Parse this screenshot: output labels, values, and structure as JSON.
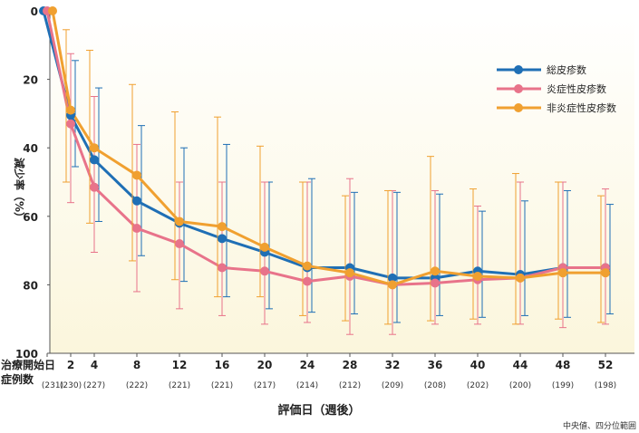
{
  "chart_data": {
    "type": "line",
    "xlabel": "評価日（週後）",
    "ylabel": "減少率（%）",
    "ylim": [
      100,
      0
    ],
    "y_ticks": [
      "0",
      "20",
      "40",
      "60",
      "80",
      "100"
    ],
    "x_ticks": [
      {
        "x": 0,
        "label": "治療開始日"
      },
      {
        "x": 2,
        "label": "2"
      },
      {
        "x": 4,
        "label": "4"
      },
      {
        "x": 8,
        "label": "8"
      },
      {
        "x": 12,
        "label": "12"
      },
      {
        "x": 16,
        "label": "16"
      },
      {
        "x": 20,
        "label": "20"
      },
      {
        "x": 24,
        "label": "24"
      },
      {
        "x": 28,
        "label": "28"
      },
      {
        "x": 32,
        "label": "32"
      },
      {
        "x": 36,
        "label": "36"
      },
      {
        "x": 40,
        "label": "40"
      },
      {
        "x": 44,
        "label": "44"
      },
      {
        "x": 48,
        "label": "48"
      },
      {
        "x": 52,
        "label": "52"
      }
    ],
    "case_count_label": "症例数",
    "case_counts": [
      "(231)",
      "(230)",
      "(227)",
      "(222)",
      "(221)",
      "(221)",
      "(217)",
      "(214)",
      "(212)",
      "(209)",
      "(208)",
      "(202)",
      "(200)",
      "(199)",
      "(198)"
    ],
    "note": "中央値、四分位範囲",
    "series": [
      {
        "name": "総皮疹数",
        "color": "#1f6fb5",
        "x": [
          0,
          2,
          4,
          8,
          12,
          16,
          20,
          24,
          28,
          32,
          36,
          40,
          44,
          48,
          52
        ],
        "y": [
          0,
          30.5,
          43.5,
          55.5,
          62,
          66.5,
          70.5,
          75,
          75,
          78,
          78,
          76,
          77,
          75,
          75
        ],
        "q1": [
          0,
          14.5,
          22.5,
          33.5,
          40,
          39,
          50,
          49,
          53,
          53,
          53.5,
          58.5,
          55.5,
          52.5,
          56.5
        ],
        "q3": [
          0,
          45.5,
          61.5,
          71.5,
          79,
          83.5,
          87,
          88,
          88.5,
          91,
          89,
          89.5,
          89,
          89.5,
          88.5
        ]
      },
      {
        "name": "炎症性皮疹数",
        "color": "#e8738a",
        "x": [
          0,
          2,
          4,
          8,
          12,
          16,
          20,
          24,
          28,
          32,
          36,
          40,
          44,
          48,
          52
        ],
        "y": [
          0,
          33,
          51.5,
          63.5,
          68,
          75,
          76,
          79,
          77.5,
          80,
          79.5,
          78.5,
          78,
          75,
          75
        ],
        "q1": [
          0,
          12.5,
          25,
          39,
          50,
          50,
          50,
          50,
          49,
          52.5,
          52.5,
          57,
          50,
          50,
          52
        ],
        "q3": [
          0,
          56,
          70.5,
          82,
          87,
          89,
          91.5,
          91,
          94.5,
          94.5,
          91.5,
          91.5,
          91.5,
          92.5,
          91.5
        ]
      },
      {
        "name": "非炎症性皮疹数",
        "color": "#f0a030",
        "x": [
          0,
          2,
          4,
          8,
          12,
          16,
          20,
          24,
          28,
          32,
          36,
          40,
          44,
          48,
          52
        ],
        "y": [
          0,
          29,
          40,
          48,
          61.5,
          63,
          69,
          74.5,
          76.5,
          80,
          76,
          77.5,
          78,
          76.5,
          76.5
        ],
        "q1": [
          0,
          5.5,
          11.5,
          21.5,
          29.5,
          31,
          39.5,
          50,
          54,
          52.5,
          42.5,
          52,
          47.5,
          50,
          54
        ],
        "q3": [
          0,
          50,
          62,
          73,
          78.5,
          83.5,
          83.5,
          89,
          90.5,
          91.5,
          90.5,
          90,
          91.5,
          90,
          91
        ]
      }
    ]
  }
}
